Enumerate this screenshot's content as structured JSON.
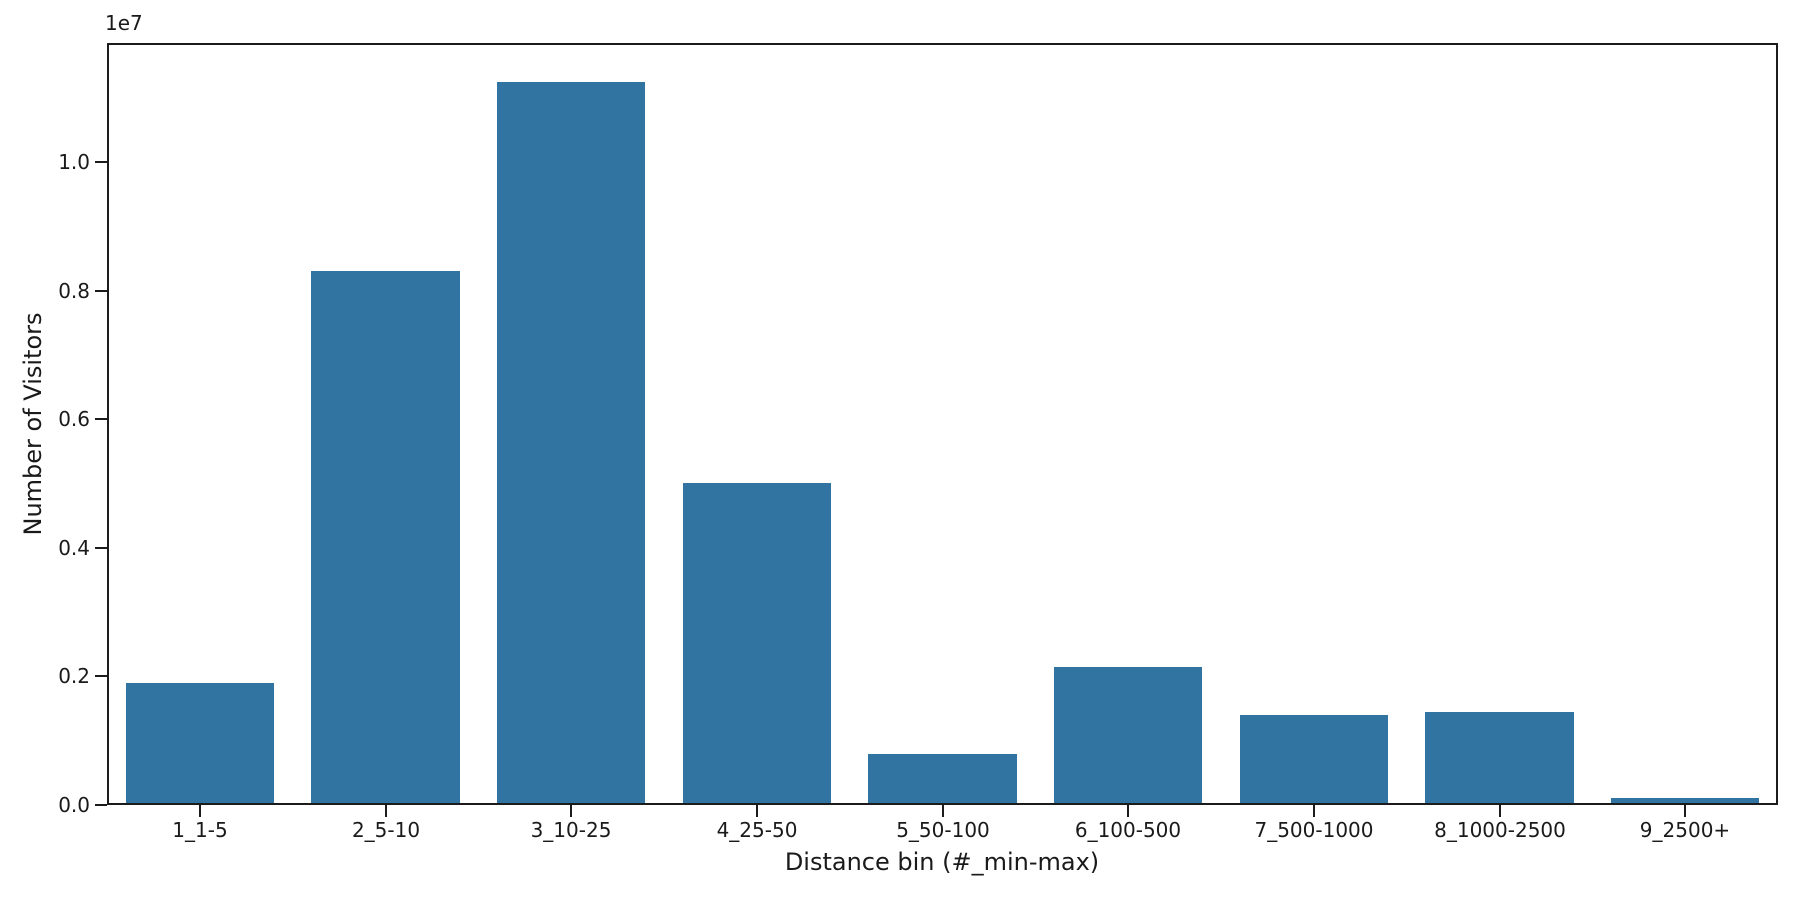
{
  "chart_data": {
    "type": "bar",
    "title": "",
    "xlabel": "Distance bin (#_min-max)",
    "ylabel": "Number of Visitors",
    "offset_text": "1e7",
    "categories": [
      "1_1-5",
      "2_5-10",
      "3_10-25",
      "4_25-50",
      "5_50-100",
      "6_100-500",
      "7_500-1000",
      "8_1000-2500",
      "9_2500+"
    ],
    "values": [
      1900000,
      8300000,
      11250000,
      5000000,
      800000,
      2150000,
      1400000,
      1440000,
      110000
    ],
    "yticks": [
      0,
      2000000,
      4000000,
      6000000,
      8000000,
      10000000
    ],
    "ytick_labels": [
      "0.0",
      "0.2",
      "0.4",
      "0.6",
      "0.8",
      "1.0"
    ],
    "ylim": [
      0,
      11850000
    ],
    "bar_color": "#3274a1",
    "axis_color": "#1c1c1c",
    "background_color": "#ffffff",
    "grid": false,
    "legend": "none",
    "bar_width_fraction": 0.8
  }
}
